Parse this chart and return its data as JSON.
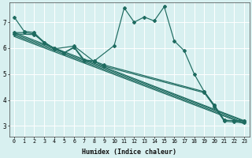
{
  "xlabel": "Humidex (Indice chaleur)",
  "bg_color": "#d8f0f0",
  "line_color": "#1e6b60",
  "grid_color": "#ffffff",
  "xlim": [
    -0.5,
    23.5
  ],
  "ylim": [
    2.6,
    7.75
  ],
  "yticks": [
    3,
    4,
    5,
    6,
    7
  ],
  "xticks": [
    0,
    1,
    2,
    3,
    4,
    5,
    6,
    7,
    8,
    9,
    10,
    11,
    12,
    13,
    14,
    15,
    16,
    17,
    18,
    19,
    20,
    21,
    22,
    23
  ],
  "curve_main": {
    "x": [
      0,
      1,
      2,
      3,
      4,
      5,
      6,
      7,
      8,
      10,
      11,
      12,
      13,
      14,
      15,
      16,
      17,
      18,
      19,
      20,
      21,
      22,
      23
    ],
    "y": [
      7.2,
      6.65,
      6.6,
      6.22,
      6.0,
      5.82,
      6.02,
      5.5,
      5.5,
      6.1,
      7.55,
      7.0,
      7.2,
      7.05,
      7.6,
      6.28,
      5.9,
      5.0,
      4.32,
      3.8,
      3.22,
      3.2,
      3.2
    ]
  },
  "line_a": {
    "x": [
      0,
      1,
      2,
      3,
      4,
      5,
      6,
      7,
      8,
      9,
      19,
      20,
      21,
      22,
      23
    ],
    "y": [
      6.6,
      6.6,
      6.55,
      6.2,
      6.0,
      5.82,
      6.05,
      5.55,
      5.5,
      5.35,
      4.32,
      3.8,
      3.22,
      3.2,
      3.2
    ]
  },
  "line_b": {
    "x": [
      0,
      2,
      4,
      6,
      8,
      9,
      19,
      20,
      21,
      22,
      23
    ],
    "y": [
      6.55,
      6.52,
      5.97,
      6.08,
      5.48,
      5.3,
      4.28,
      3.75,
      3.18,
      3.15,
      3.12
    ]
  },
  "line_c": {
    "x": [
      0,
      2,
      4,
      6,
      8,
      19,
      20,
      21,
      22,
      23
    ],
    "y": [
      6.5,
      6.48,
      5.92,
      6.02,
      5.42,
      4.22,
      3.68,
      3.12,
      3.08,
      3.05
    ]
  },
  "line_d": {
    "x": [
      0,
      19,
      20,
      21,
      22,
      23
    ],
    "y": [
      6.58,
      4.25,
      3.72,
      3.15,
      3.1,
      3.08
    ]
  }
}
